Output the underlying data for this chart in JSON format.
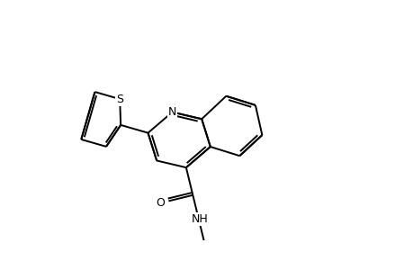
{
  "background_color": "#ffffff",
  "line_color": "#000000",
  "line_width": 1.4,
  "figsize": [
    4.6,
    3.0
  ],
  "dpi": 100,
  "xlim": [
    0,
    9.2
  ],
  "ylim": [
    0,
    6.0
  ]
}
